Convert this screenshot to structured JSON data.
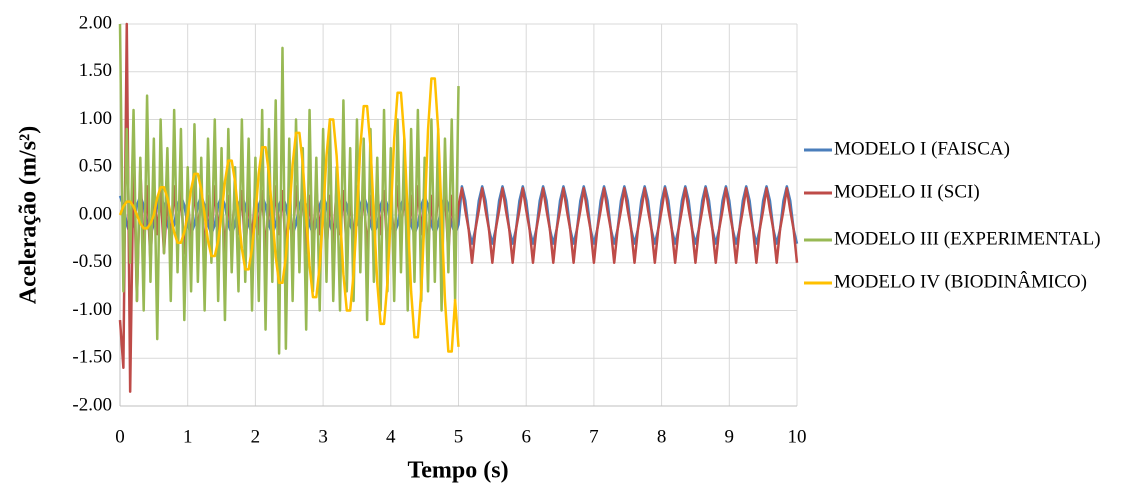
{
  "chart_data": {
    "type": "line",
    "ylabel": "Aceleração (m/s²)",
    "xlabel": "Tempo (s)",
    "xlim": [
      0,
      10
    ],
    "xticks": [
      0,
      1,
      2,
      3,
      4,
      5,
      6,
      7,
      8,
      9,
      10
    ],
    "ylim": [
      -2,
      2
    ],
    "yticks": [
      {
        "value": -2,
        "label": "-2.00"
      },
      {
        "value": -1.5,
        "label": "-1.50"
      },
      {
        "value": -1,
        "label": "-1.00"
      },
      {
        "value": -0.5,
        "label": "-0.50"
      },
      {
        "value": 0,
        "label": "0.00"
      },
      {
        "value": 0.5,
        "label": "0.50"
      },
      {
        "value": 1,
        "label": "1.00"
      },
      {
        "value": 1.5,
        "label": "1.50"
      },
      {
        "value": 2,
        "label": "2.00"
      }
    ],
    "grid": true,
    "legend": "right",
    "x": [
      0,
      0.05,
      0.1,
      0.15,
      0.2,
      0.25,
      0.3,
      0.35,
      0.4,
      0.45,
      0.5,
      0.55,
      0.6,
      0.65,
      0.7,
      0.75,
      0.8,
      0.85,
      0.9,
      0.95,
      1,
      1.05,
      1.1,
      1.15,
      1.2,
      1.25,
      1.3,
      1.35,
      1.4,
      1.45,
      1.5,
      1.55,
      1.6,
      1.65,
      1.7,
      1.75,
      1.8,
      1.85,
      1.9,
      1.95,
      2,
      2.05,
      2.1,
      2.15,
      2.2,
      2.25,
      2.3,
      2.35,
      2.4,
      2.45,
      2.5,
      2.55,
      2.6,
      2.65,
      2.7,
      2.75,
      2.8,
      2.85,
      2.9,
      2.95,
      3,
      3.05,
      3.1,
      3.15,
      3.2,
      3.25,
      3.3,
      3.35,
      3.4,
      3.45,
      3.5,
      3.55,
      3.6,
      3.65,
      3.7,
      3.75,
      3.8,
      3.85,
      3.9,
      3.95,
      4,
      4.05,
      4.1,
      4.15,
      4.2,
      4.25,
      4.3,
      4.35,
      4.4,
      4.45,
      4.5,
      4.55,
      4.6,
      4.65,
      4.7,
      4.75,
      4.8,
      4.85,
      4.9,
      4.95,
      5,
      5.05,
      5.1,
      5.15,
      5.2,
      5.25,
      5.3,
      5.35,
      5.4,
      5.45,
      5.5,
      5.55,
      5.6,
      5.65,
      5.7,
      5.75,
      5.8,
      5.85,
      5.9,
      5.95,
      6,
      6.05,
      6.1,
      6.15,
      6.2,
      6.25,
      6.3,
      6.35,
      6.4,
      6.45,
      6.5,
      6.55,
      6.6,
      6.65,
      6.7,
      6.75,
      6.8,
      6.85,
      6.9,
      6.95,
      7,
      7.05,
      7.1,
      7.15,
      7.2,
      7.25,
      7.3,
      7.35,
      7.4,
      7.45,
      7.5,
      7.55,
      7.6,
      7.65,
      7.7,
      7.75,
      7.8,
      7.85,
      7.9,
      7.95,
      8,
      8.05,
      8.1,
      8.15,
      8.2,
      8.25,
      8.3,
      8.35,
      8.4,
      8.45,
      8.5,
      8.55,
      8.6,
      8.65,
      8.7,
      8.75,
      8.8,
      8.85,
      8.9,
      8.95,
      9,
      9.05,
      9.1,
      9.15,
      9.2,
      9.25,
      9.3,
      9.35,
      9.4,
      9.45,
      9.5,
      9.55,
      9.6,
      9.65,
      9.7,
      9.75,
      9.8,
      9.85,
      9.9,
      9.95,
      10
    ],
    "series": [
      {
        "name": "MODELO I (FAISCA)",
        "color": "#4a7ebb",
        "values": [
          0.2,
          0.1,
          -0.1,
          -0.2,
          -0.1,
          0.1,
          0.2,
          0.1,
          -0.1,
          -0.2,
          -0.1,
          0.1,
          0.2,
          0.1,
          -0.1,
          -0.2,
          -0.1,
          0.1,
          0.2,
          0.1,
          -0.1,
          -0.2,
          -0.1,
          0.1,
          0.2,
          0.1,
          -0.1,
          -0.2,
          -0.1,
          0.1,
          0.2,
          0.1,
          -0.1,
          -0.2,
          -0.1,
          0.1,
          0.2,
          0.1,
          -0.1,
          -0.2,
          -0.1,
          0.1,
          0.2,
          0.1,
          -0.1,
          -0.2,
          -0.1,
          0.1,
          0.2,
          0.1,
          -0.1,
          -0.2,
          -0.1,
          0.1,
          0.2,
          0.1,
          -0.1,
          -0.2,
          -0.1,
          0.1,
          0.2,
          0.1,
          -0.1,
          -0.2,
          -0.1,
          0.1,
          0.2,
          0.1,
          -0.1,
          -0.2,
          -0.1,
          0.1,
          0.2,
          0.1,
          -0.1,
          -0.2,
          -0.1,
          0.1,
          0.2,
          0.1,
          -0.1,
          -0.2,
          -0.1,
          0.1,
          0.2,
          0.1,
          -0.1,
          -0.2,
          -0.1,
          0.1,
          0.2,
          0.1,
          -0.1,
          -0.2,
          -0.1,
          0.1,
          0.2,
          0.1,
          -0.1,
          -0.2,
          -0.1,
          0.3,
          0.15,
          -0.15,
          -0.3,
          -0.15,
          0.15,
          0.3,
          0.15,
          -0.15,
          -0.3,
          -0.15,
          0.15,
          0.3,
          0.15,
          -0.15,
          -0.3,
          -0.15,
          0.15,
          0.3,
          0.15,
          -0.15,
          -0.3,
          -0.15,
          0.15,
          0.3,
          0.15,
          -0.15,
          -0.3,
          -0.15,
          0.15,
          0.3,
          0.15,
          -0.15,
          -0.3,
          -0.15,
          0.15,
          0.3,
          0.15,
          -0.15,
          -0.3,
          -0.15,
          0.15,
          0.3,
          0.15,
          -0.15,
          -0.3,
          -0.15,
          0.15,
          0.3,
          0.15,
          -0.15,
          -0.3,
          -0.15,
          0.15,
          0.3,
          0.15,
          -0.15,
          -0.3,
          -0.15,
          0.15,
          0.3,
          0.15,
          -0.15,
          -0.3,
          -0.15,
          0.15,
          0.3,
          0.15,
          -0.15,
          -0.3,
          -0.15,
          0.15,
          0.3,
          0.15,
          -0.15,
          -0.3,
          -0.15,
          0.15,
          0.3,
          0.15,
          -0.15,
          -0.3,
          -0.15,
          0.15,
          0.3,
          0.15,
          -0.15,
          -0.3,
          -0.15,
          0.15,
          0.3,
          0.15,
          -0.15,
          -0.3,
          -0.15,
          0.15,
          0.3,
          0.15,
          -0.15,
          -0.3
        ]
      },
      {
        "name": "MODELO II (SCI)",
        "color": "#be4b48",
        "values": [
          -1.1,
          -1.6,
          2.0,
          -1.85,
          0.6,
          -0.9,
          0.5,
          -0.4,
          0.3,
          -0.5,
          0.3,
          -0.2,
          0.25,
          -0.4,
          0.2,
          -0.3,
          0.3,
          -0.2,
          0.25,
          -0.4,
          0.2,
          -0.3,
          0.3,
          -0.2,
          0.25,
          -0.4,
          0.2,
          -0.3,
          0.3,
          -0.2,
          0.25,
          -0.4,
          0.2,
          -0.3,
          0.3,
          -0.2,
          0.25,
          -0.4,
          0.2,
          -0.3,
          0.3,
          -0.2,
          0.25,
          -0.4,
          0.2,
          -0.3,
          0.3,
          -0.2,
          0.25,
          -0.4,
          0.2,
          -0.3,
          0.3,
          -0.2,
          0.25,
          -0.4,
          0.2,
          -0.3,
          0.3,
          -0.2,
          0.25,
          -0.4,
          0.2,
          -0.3,
          0.3,
          -0.2,
          0.25,
          -0.4,
          0.2,
          -0.3,
          0.3,
          -0.2,
          0.25,
          -0.4,
          0.2,
          -0.3,
          0.3,
          -0.2,
          0.25,
          -0.4,
          0.2,
          -0.3,
          0.3,
          -0.2,
          0.25,
          -0.4,
          0.2,
          -0.3,
          0.3,
          -0.2,
          0.25,
          -0.4,
          0.2,
          -0.3,
          0.3,
          -0.2,
          0.25,
          -0.4,
          0.2,
          -0.3,
          0.1,
          0.28,
          0.05,
          -0.15,
          -0.5,
          -0.15,
          0.05,
          0.28,
          0.05,
          -0.15,
          -0.5,
          -0.15,
          0.05,
          0.28,
          0.05,
          -0.15,
          -0.5,
          -0.15,
          0.05,
          0.28,
          0.05,
          -0.15,
          -0.5,
          -0.15,
          0.05,
          0.28,
          0.05,
          -0.15,
          -0.5,
          -0.15,
          0.05,
          0.28,
          0.05,
          -0.15,
          -0.5,
          -0.15,
          0.05,
          0.28,
          0.05,
          -0.15,
          -0.5,
          -0.15,
          0.05,
          0.28,
          0.05,
          -0.15,
          -0.5,
          -0.15,
          0.05,
          0.28,
          0.05,
          -0.15,
          -0.5,
          -0.15,
          0.05,
          0.28,
          0.05,
          -0.15,
          -0.5,
          -0.15,
          0.05,
          0.28,
          0.05,
          -0.15,
          -0.5,
          -0.15,
          0.05,
          0.28,
          0.05,
          -0.15,
          -0.5,
          -0.15,
          0.05,
          0.28,
          0.05,
          -0.15,
          -0.5,
          -0.15,
          0.05,
          0.28,
          0.05,
          -0.15,
          -0.5,
          -0.15,
          0.05,
          0.28,
          0.05,
          -0.15,
          -0.5,
          -0.15,
          0.05,
          0.28,
          0.05,
          -0.15,
          -0.5,
          -0.15,
          0.05,
          0.28,
          0.05,
          -0.15,
          -0.5
        ]
      },
      {
        "name": "MODELO III (EXPERIMENTAL)",
        "color": "#98b954",
        "values": [
          2.0,
          -0.8,
          0.9,
          -0.5,
          1.1,
          -0.9,
          0.6,
          -1.0,
          1.25,
          -0.7,
          0.8,
          -1.3,
          1.0,
          -0.4,
          0.7,
          -0.9,
          1.1,
          -0.6,
          0.9,
          -1.1,
          0.5,
          -0.8,
          0.95,
          -0.7,
          0.6,
          -1.0,
          0.8,
          -0.5,
          1.0,
          -0.9,
          0.7,
          -1.1,
          0.9,
          -0.6,
          0.5,
          -0.8,
          1.0,
          -0.7,
          0.8,
          -1.0,
          0.6,
          -0.9,
          1.1,
          -1.2,
          0.9,
          -0.7,
          1.2,
          -1.45,
          1.75,
          -1.4,
          0.8,
          -0.9,
          1.0,
          -0.6,
          0.7,
          -1.2,
          1.1,
          -0.8,
          0.6,
          -1.0,
          0.9,
          -0.7,
          1.0,
          -0.9,
          0.5,
          -1.0,
          1.2,
          -0.8,
          0.7,
          -0.9,
          1.0,
          -0.6,
          0.8,
          -1.1,
          0.9,
          -0.7,
          0.6,
          -1.0,
          1.1,
          -0.8,
          0.7,
          -0.9,
          1.0,
          -0.6,
          0.8,
          -1.0,
          0.9,
          -0.7,
          1.1,
          -0.9,
          0.6,
          -0.8,
          1.0,
          -0.7,
          0.9,
          -1.0,
          0.8,
          -0.6,
          1.0,
          -0.9,
          1.35,
          null,
          null,
          null,
          null,
          null,
          null,
          null,
          null,
          null,
          null,
          null,
          null,
          null,
          null,
          null,
          null,
          null,
          null,
          null,
          null,
          null,
          null,
          null,
          null,
          null,
          null,
          null,
          null,
          null,
          null,
          null,
          null,
          null,
          null,
          null,
          null,
          null,
          null,
          null,
          null,
          null,
          null,
          null,
          null,
          null,
          null,
          null,
          null,
          null,
          null,
          null,
          null,
          null,
          null,
          null,
          null,
          null,
          null,
          null,
          null,
          null,
          null,
          null,
          null,
          null,
          null,
          null,
          null,
          null,
          null,
          null,
          null,
          null,
          null,
          null,
          null,
          null,
          null,
          null,
          null,
          null,
          null,
          null,
          null,
          null,
          null,
          null,
          null,
          null,
          null,
          null,
          null,
          null,
          null,
          null,
          null,
          null,
          null,
          null,
          null
        ]
      },
      {
        "name": "MODELO IV (BIODINÂMICO)",
        "color": "#ffc000",
        "values": [
          0,
          0.09,
          0.14,
          0.14,
          0.09,
          0,
          -0.09,
          -0.14,
          -0.14,
          -0.09,
          0,
          0.18,
          0.29,
          0.29,
          0.18,
          0,
          -0.18,
          -0.29,
          -0.29,
          -0.18,
          0,
          0.27,
          0.43,
          0.43,
          0.27,
          0,
          -0.27,
          -0.43,
          -0.43,
          -0.27,
          0,
          0.35,
          0.57,
          0.57,
          0.35,
          0,
          -0.35,
          -0.57,
          -0.57,
          -0.35,
          0,
          0.44,
          0.71,
          0.71,
          0.44,
          0,
          -0.44,
          -0.71,
          -0.71,
          -0.44,
          0,
          0.53,
          0.86,
          0.86,
          0.53,
          0,
          -0.53,
          -0.86,
          -0.86,
          -0.53,
          0,
          0.62,
          1.0,
          1.0,
          0.62,
          0,
          -0.62,
          -1.0,
          -1.0,
          -0.62,
          0,
          0.71,
          1.14,
          1.14,
          0.71,
          0,
          -0.71,
          -1.14,
          -1.14,
          -0.71,
          0,
          0.8,
          1.28,
          1.28,
          0.8,
          0,
          -0.8,
          -1.28,
          -1.28,
          -0.8,
          0,
          0.89,
          1.43,
          1.43,
          0.89,
          0,
          -0.89,
          -1.43,
          -1.43,
          -0.89,
          -1.38,
          null,
          null,
          null,
          null,
          null,
          null,
          null,
          null,
          null,
          null,
          null,
          null,
          null,
          null,
          null,
          null,
          null,
          null,
          null,
          null,
          null,
          null,
          null,
          null,
          null,
          null,
          null,
          null,
          null,
          null,
          null,
          null,
          null,
          null,
          null,
          null,
          null,
          null,
          null,
          null,
          null,
          null,
          null,
          null,
          null,
          null,
          null,
          null,
          null,
          null,
          null,
          null,
          null,
          null,
          null,
          null,
          null,
          null,
          null,
          null,
          null,
          null,
          null,
          null,
          null,
          null,
          null,
          null,
          null,
          null,
          null,
          null,
          null,
          null,
          null,
          null,
          null,
          null,
          null,
          null,
          null,
          null,
          null,
          null,
          null,
          null,
          null,
          null,
          null,
          null,
          null,
          null,
          null,
          null,
          null,
          null,
          null,
          null,
          null,
          null
        ]
      }
    ]
  }
}
